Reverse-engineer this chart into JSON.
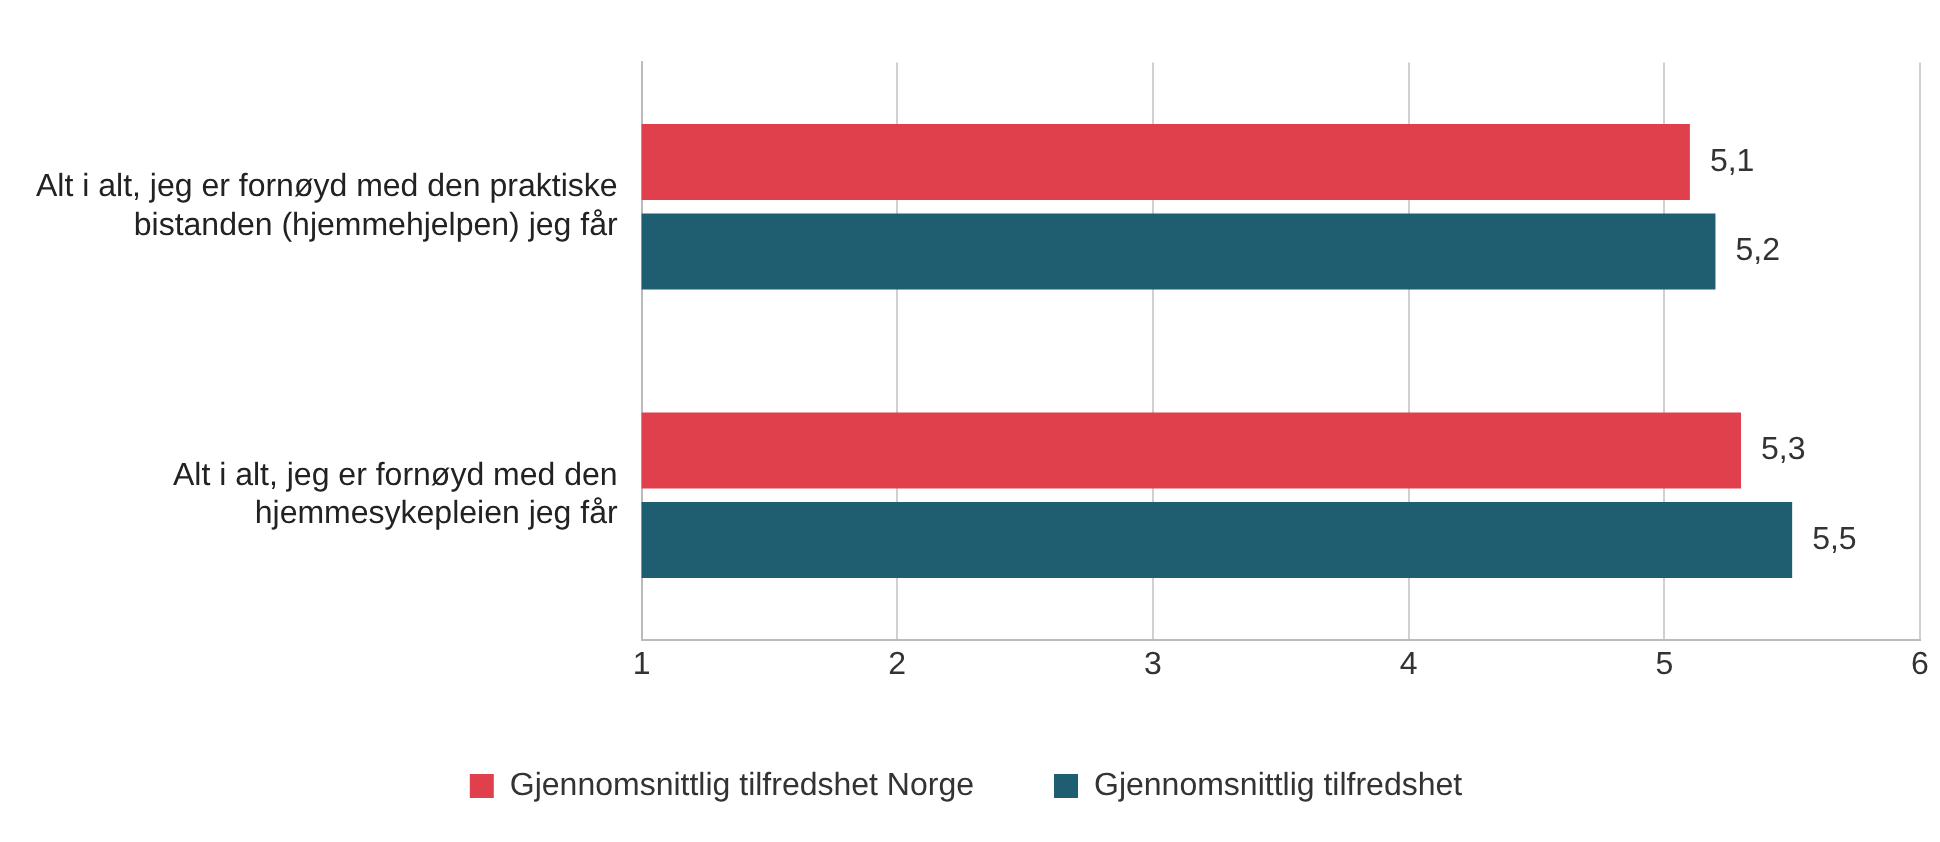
{
  "chart_data": {
    "type": "bar",
    "orientation": "horizontal",
    "categories": [
      "Alt i alt, jeg er fornøyd med den praktiske bistanden (hjemmehjelpen) jeg får",
      "Alt i alt, jeg er fornøyd med den hjemmesykepleien jeg får"
    ],
    "series": [
      {
        "name": "Gjennomsnittlig tilfredshet Norge",
        "color": "#e0404c",
        "values": [
          5.1,
          5.3
        ],
        "value_labels": [
          "5,1",
          "5,3"
        ]
      },
      {
        "name": "Gjennomsnittlig tilfredshet",
        "color": "#1f5e70",
        "values": [
          5.2,
          5.5
        ],
        "value_labels": [
          "5,2",
          "5,5"
        ]
      }
    ],
    "xlim": [
      1,
      6
    ],
    "xticks": [
      1,
      2,
      3,
      4,
      5,
      6
    ],
    "grid": "x",
    "legend": "bottom"
  }
}
